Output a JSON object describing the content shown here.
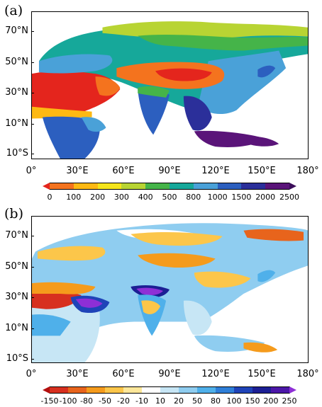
{
  "panel_a": {
    "label": "(a)",
    "lat_labels": [
      "70°N",
      "50°N",
      "30°N",
      "10°N",
      "10°S"
    ],
    "lon_labels": [
      "0°",
      "30°E",
      "60°E",
      "90°E",
      "120°E",
      "150°E",
      "180°"
    ],
    "colorbar": {
      "ticks": [
        "0",
        "100",
        "200",
        "300",
        "400",
        "500",
        "800",
        "1000",
        "1500",
        "2000",
        "2500"
      ],
      "colors": [
        "#e4251d",
        "#f4731e",
        "#fdb913",
        "#f5e51b",
        "#b8d433",
        "#45b449",
        "#16a89a",
        "#4aa1d8",
        "#2c5fbf",
        "#2b2f9a",
        "#5a1479",
        "#3b0d5a"
      ]
    }
  },
  "panel_b": {
    "label": "(b)",
    "lat_labels": [
      "70°N",
      "50°N",
      "30°N",
      "10°N",
      "10°S"
    ],
    "lon_labels": [
      "0°",
      "30°E",
      "60°E",
      "90°E",
      "120°E",
      "150°E",
      "180°"
    ],
    "colorbar": {
      "ticks": [
        "-150",
        "-100",
        "-80",
        "-50",
        "-20",
        "-10",
        "10",
        "20",
        "50",
        "80",
        "100",
        "150",
        "200",
        "250"
      ],
      "colors": [
        "#b30f0f",
        "#d7301f",
        "#e8641c",
        "#f59b1c",
        "#fcc64a",
        "#fde79a",
        "#ffffff",
        "#c7e6f5",
        "#8fcdf0",
        "#4fb0ea",
        "#2f7fd8",
        "#1f43b8",
        "#1c1f94",
        "#4b17a8",
        "#8e2fd6"
      ]
    }
  }
}
